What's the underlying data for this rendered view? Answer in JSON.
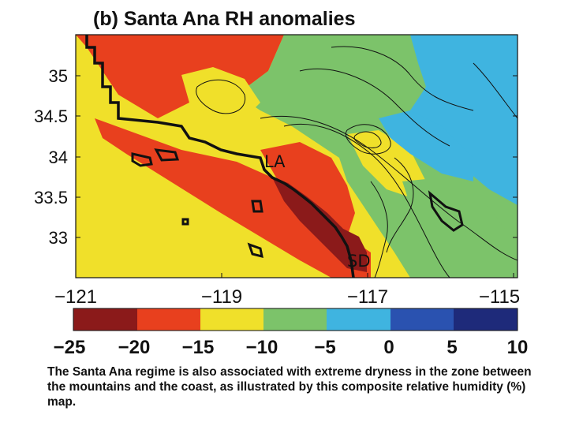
{
  "title": "(b) Santa Ana RH anomalies",
  "y_ticks": [
    "35",
    "34.5",
    "34",
    "33.5",
    "33"
  ],
  "x_ticks": [
    "−121",
    "−119",
    "−117",
    "−115"
  ],
  "map_labels": {
    "la": "LA",
    "sd": "SD"
  },
  "colorbar": {
    "ticks": [
      "−25",
      "−20",
      "−15",
      "−10",
      "−5",
      "0",
      "5",
      "10"
    ],
    "colors": [
      "#8b1a1a",
      "#e8401e",
      "#f0e02a",
      "#7cc36a",
      "#3fb4e0",
      "#2a52b0",
      "#1e2a7a"
    ]
  },
  "caption": "The Santa Ana regime is also associated with extreme dryness in the zone between the mountains and the coast, as illustrated by this composite relative humidity (%) map."
}
